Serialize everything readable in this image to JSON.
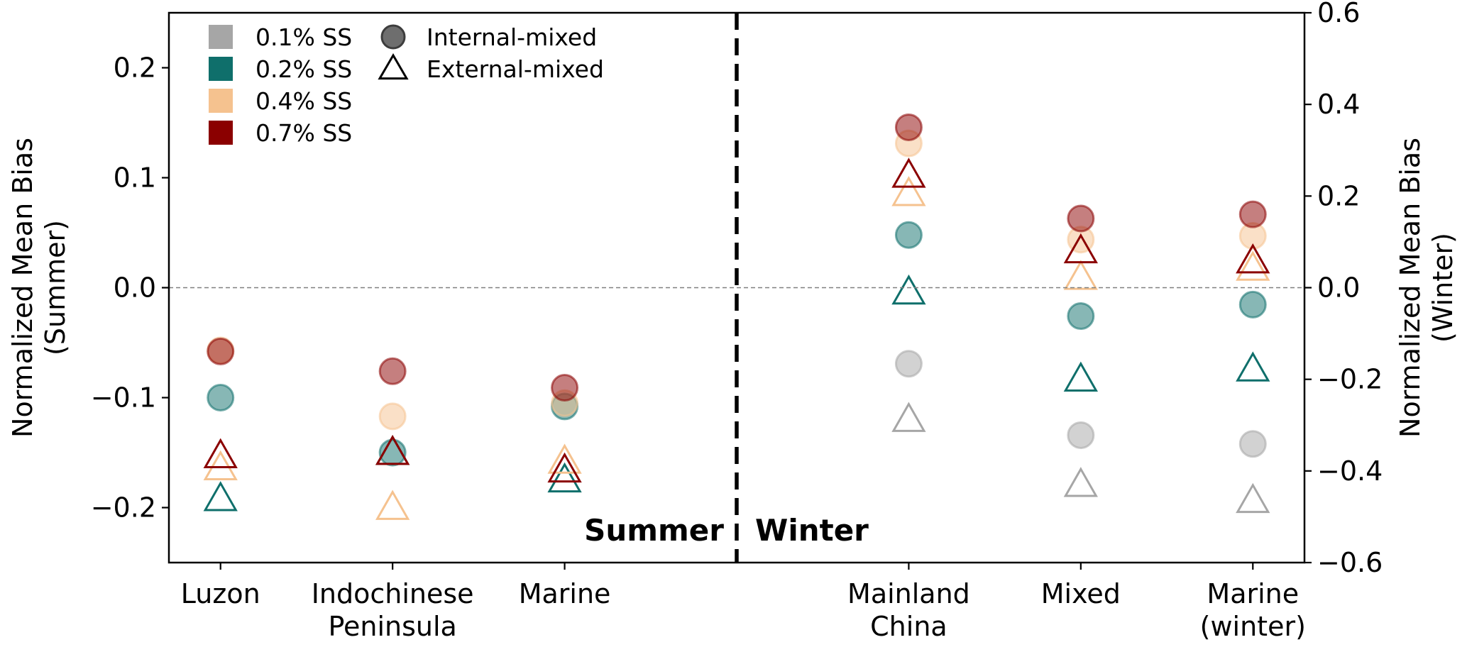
{
  "chart_data": {
    "type": "scatter",
    "categories": [
      "Luzon",
      "Indochinese\nPeninsula",
      "Marine",
      "Mainland\nChina",
      "Mixed",
      "Marine\n(winter)"
    ],
    "ylabel_left": "Normalized Mean Bias\n(Summer)",
    "ylabel_right": "Normalized Mean Bias\n(Winter)",
    "ylim_left": [
      -0.25,
      0.25
    ],
    "ylim_right": [
      -0.6,
      0.6
    ],
    "yticks_left": [
      "−0.2",
      "−0.1",
      "0.0",
      "0.1",
      "0.2"
    ],
    "yticks_right": [
      "−0.6",
      "−0.4",
      "−0.2",
      "0.0",
      "0.2",
      "0.4",
      "0.6"
    ],
    "season_labels": [
      "Summer",
      "Winter"
    ],
    "summer_categories": [
      "Luzon",
      "Indochinese\nPeninsula",
      "Marine"
    ],
    "winter_categories": [
      "Mainland\nChina",
      "Mixed",
      "Marine\n(winter)"
    ],
    "legend_ss": [
      {
        "label": "0.1% SS",
        "color": "#a6a6a6"
      },
      {
        "label": "0.2% SS",
        "color": "#0f6f6b"
      },
      {
        "label": "0.4% SS",
        "color": "#f5c28f"
      },
      {
        "label": "0.7% SS",
        "color": "#8b0000"
      }
    ],
    "legend_markers": [
      {
        "label": "Internal-mixed",
        "marker": "circle"
      },
      {
        "label": "External-mixed",
        "marker": "triangle"
      }
    ],
    "series": [
      {
        "ss": "0.2% SS",
        "mixing": "Internal-mixed",
        "summer": [
          -0.1,
          -0.15,
          -0.108
        ],
        "winter": [
          0.115,
          -0.062,
          -0.037
        ]
      },
      {
        "ss": "0.4% SS",
        "mixing": "Internal-mixed",
        "summer": [
          -0.057,
          -0.117,
          -0.105
        ],
        "winter": [
          0.315,
          0.105,
          0.113
        ]
      },
      {
        "ss": "0.7% SS",
        "mixing": "Internal-mixed",
        "summer": [
          -0.058,
          -0.076,
          -0.091
        ],
        "winter": [
          0.35,
          0.151,
          0.16
        ]
      },
      {
        "ss": "0.1% SS",
        "mixing": "Internal-mixed",
        "summer": [
          null,
          null,
          null
        ],
        "winter": [
          -0.166,
          -0.322,
          -0.341
        ]
      },
      {
        "ss": "0.2% SS",
        "mixing": "External-mixed",
        "summer": [
          -0.192,
          -0.15,
          -0.175
        ],
        "winter": [
          -0.01,
          -0.2,
          -0.178
        ]
      },
      {
        "ss": "0.4% SS",
        "mixing": "External-mixed",
        "summer": [
          -0.164,
          -0.2,
          -0.158
        ],
        "winter": [
          0.205,
          0.022,
          0.042
        ]
      },
      {
        "ss": "0.7% SS",
        "mixing": "External-mixed",
        "summer": [
          -0.153,
          -0.15,
          -0.166
        ],
        "winter": [
          0.245,
          0.08,
          0.058
        ]
      },
      {
        "ss": "0.1% SS",
        "mixing": "External-mixed",
        "summer": [
          null,
          null,
          null
        ],
        "winter": [
          -0.288,
          -0.43,
          -0.465
        ]
      }
    ],
    "grid": false,
    "legend_position": "top-left"
  }
}
